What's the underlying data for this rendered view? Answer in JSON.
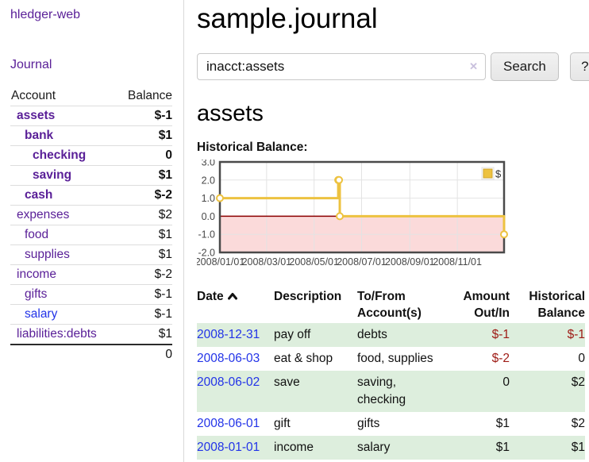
{
  "app": {
    "brand": "hledger-web",
    "nav_journal": "Journal"
  },
  "sidebar": {
    "accounts_header": {
      "account": "Account",
      "balance": "Balance"
    },
    "accounts": [
      {
        "label": "assets",
        "balance": "$-1",
        "indent": 0,
        "bold": true,
        "balance_tone": "neg-strong"
      },
      {
        "label": "bank",
        "balance": "$1",
        "indent": 1,
        "bold": true,
        "balance_tone": "pos"
      },
      {
        "label": "checking",
        "balance": "0",
        "indent": 2,
        "bold": true,
        "balance_tone": "pos"
      },
      {
        "label": "saving",
        "balance": "$1",
        "indent": 2,
        "bold": true,
        "balance_tone": "pos"
      },
      {
        "label": "cash",
        "balance": "$-2",
        "indent": 1,
        "bold": true,
        "balance_tone": "neg-strong"
      },
      {
        "label": "expenses",
        "balance": "$2",
        "indent": 0,
        "bold": false,
        "balance_tone": "pos"
      },
      {
        "label": "food",
        "balance": "$1",
        "indent": 1,
        "bold": false,
        "balance_tone": "pos"
      },
      {
        "label": "supplies",
        "balance": "$1",
        "indent": 1,
        "bold": false,
        "balance_tone": "pos"
      },
      {
        "label": "income",
        "balance": "$-2",
        "indent": 0,
        "bold": false,
        "balance_tone": "neg-soft"
      },
      {
        "label": "gifts",
        "balance": "$-1",
        "indent": 1,
        "bold": false,
        "balance_tone": "neg-soft"
      },
      {
        "label": "salary",
        "balance": "$-1",
        "indent": 1,
        "bold": false,
        "balance_tone": "neg-soft",
        "link_tone": "blue"
      },
      {
        "label": "liabilities:debts",
        "balance": "$1",
        "indent": 0,
        "bold": false,
        "balance_tone": "pos"
      }
    ],
    "total_balance": "0"
  },
  "header": {
    "title": "sample.journal"
  },
  "search": {
    "value": "inacct:assets",
    "clear_label": "✕",
    "button": "Search",
    "help_button": "?"
  },
  "account_page": {
    "heading": "assets",
    "chart_label": "Historical Balance:"
  },
  "chart_data": {
    "type": "line",
    "title": "Historical Balance:",
    "step": true,
    "x": [
      "2008-01-01",
      "2008-06-01",
      "2008-06-02",
      "2008-06-03",
      "2008-12-31"
    ],
    "y": [
      1,
      2,
      2,
      0,
      -1
    ],
    "xlim": [
      "2008-01-01",
      "2008-12-31"
    ],
    "ylim": [
      -2,
      3
    ],
    "y_ticks": [
      {
        "v": 3,
        "label": "3.0"
      },
      {
        "v": 2,
        "label": "2.0"
      },
      {
        "v": 1,
        "label": "1.0"
      },
      {
        "v": 0,
        "label": "0.0"
      },
      {
        "v": -1,
        "label": "-1.0"
      },
      {
        "v": -2,
        "label": "-2.0"
      }
    ],
    "x_ticks": [
      {
        "d": "2008-01-01",
        "label": "2008/01/01"
      },
      {
        "d": "2008-03-01",
        "label": "2008/03/01"
      },
      {
        "d": "2008-05-01",
        "label": "2008/05/01"
      },
      {
        "d": "2008-07-01",
        "label": "2008/07/01"
      },
      {
        "d": "2008-09-01",
        "label": "2008/09/01"
      },
      {
        "d": "2008-11-01",
        "label": "2008/11/01"
      }
    ],
    "legend": {
      "position": "top-right",
      "entries": [
        {
          "label": "$",
          "color": "#edc240"
        }
      ]
    },
    "grid": true,
    "colors": {
      "line": "#edc240",
      "marker_fill": "#ffffff",
      "negative_region": "#fbdada",
      "zero_line": "#8b0000",
      "grid_line": "#e3e3e3",
      "border": "#4a4a4a",
      "tick_text": "#474747",
      "legend_text": "#333333"
    }
  },
  "register": {
    "columns": {
      "date": "Date",
      "description": "Description",
      "tofrom_line1": "To/From",
      "tofrom_line2": "Account(s)",
      "amount_line1": "Amount",
      "amount_line2": "Out/In",
      "balance_line1": "Historical",
      "balance_line2": "Balance"
    },
    "rows": [
      {
        "date": "2008-12-31",
        "description": "pay off",
        "accounts": "debts",
        "amount": "$-1",
        "amount_negative": true,
        "balance": "$-1",
        "balance_negative": true
      },
      {
        "date": "2008-06-03",
        "description": "eat & shop",
        "accounts": "food, supplies",
        "amount": "$-2",
        "amount_negative": true,
        "balance": "0",
        "balance_negative": false
      },
      {
        "date": "2008-06-02",
        "description": "save",
        "accounts": "saving, checking",
        "amount": "0",
        "amount_negative": false,
        "balance": "$2",
        "balance_negative": false
      },
      {
        "date": "2008-06-01",
        "description": "gift",
        "accounts": "gifts",
        "amount": "$1",
        "amount_negative": false,
        "balance": "$2",
        "balance_negative": false
      },
      {
        "date": "2008-01-01",
        "description": "income",
        "accounts": "salary",
        "amount": "$1",
        "amount_negative": false,
        "balance": "$1",
        "balance_negative": false
      }
    ]
  }
}
